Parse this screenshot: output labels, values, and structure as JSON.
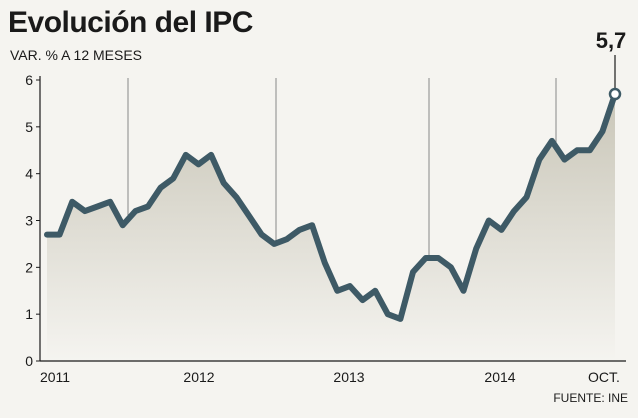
{
  "chart_data": {
    "type": "area",
    "title": "Evolución del IPC",
    "subtitle": "VAR. % A 12 MESES",
    "source": "FUENTE: INE",
    "ylim": [
      0,
      6
    ],
    "yticks": [
      "0",
      "1",
      "2",
      "3",
      "4",
      "5",
      "6"
    ],
    "xlabels": [
      "2011",
      "2012",
      "2013",
      "2014",
      "OCT."
    ],
    "last_value_label": "5,7",
    "series": [
      {
        "name": "IPC",
        "values": [
          2.7,
          2.7,
          3.4,
          3.2,
          3.3,
          3.4,
          2.9,
          3.2,
          3.3,
          3.7,
          3.9,
          4.4,
          4.2,
          4.4,
          3.8,
          3.5,
          3.1,
          2.7,
          2.5,
          2.6,
          2.8,
          2.9,
          2.1,
          1.5,
          1.6,
          1.3,
          1.5,
          1.0,
          0.9,
          1.9,
          2.2,
          2.2,
          2.0,
          1.5,
          2.4,
          3.0,
          2.8,
          3.2,
          3.5,
          4.3,
          4.7,
          4.3,
          4.5,
          4.5,
          4.9,
          5.7
        ]
      }
    ],
    "colors": {
      "line": "#3e5a66",
      "fill_top": "#c9c6b8",
      "fill_bottom": "#f5f4f0",
      "grid": "#888888",
      "marker_fill": "#ffffff"
    }
  }
}
